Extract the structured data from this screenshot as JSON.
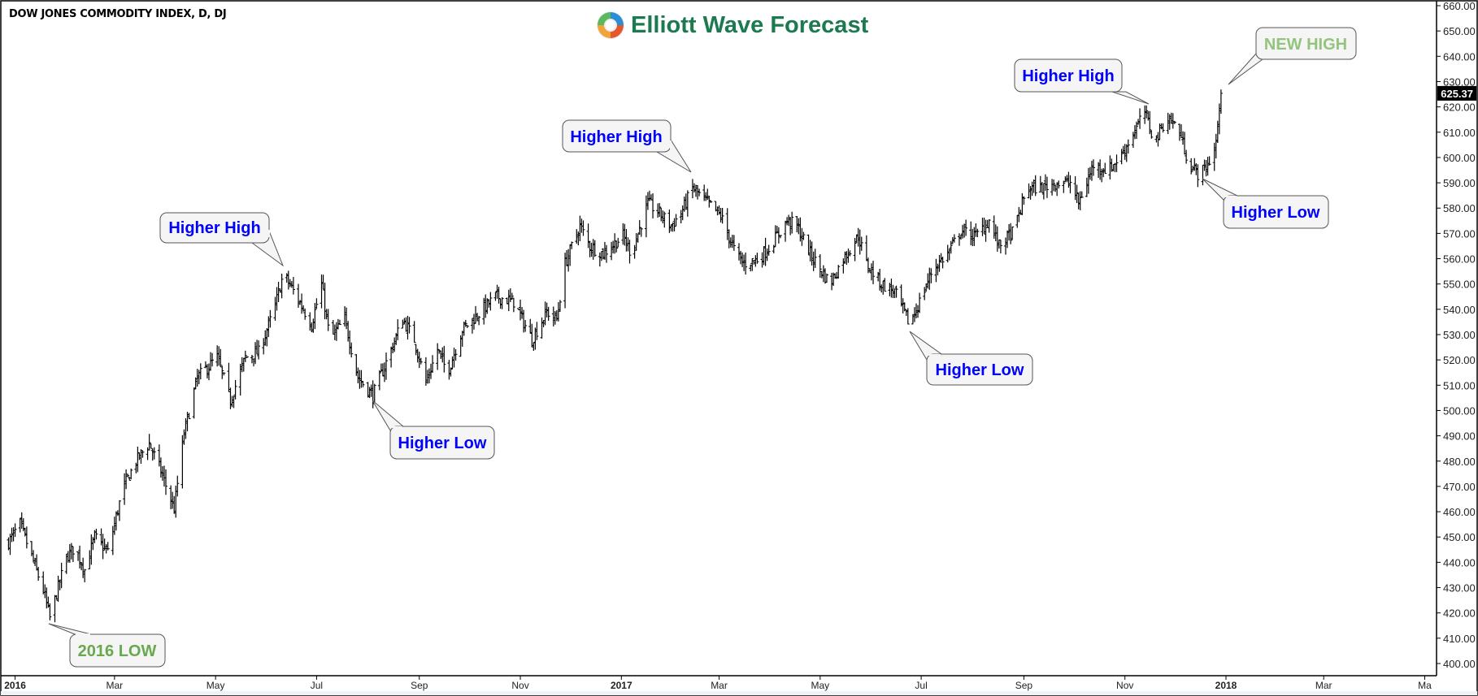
{
  "header": {
    "title": "DOW JONES COMMODITY INDEX, D, DJ",
    "logo_text": "Elliott Wave Forecast"
  },
  "colors": {
    "bars": "#000000",
    "callout_blue": "#0000ff",
    "low_green": "#6aa84f",
    "new_high_green": "#93c47d",
    "logo_green": "#1b7a50",
    "last_price_bg": "#000000"
  },
  "chart_data": {
    "type": "ohlc",
    "title": "DOW JONES COMMODITY INDEX, D, DJ",
    "timeframe": "daily",
    "ylim": [
      400,
      660
    ],
    "y_ticks": [
      "660.00",
      "650.00",
      "640.00",
      "630.00",
      "620.00",
      "610.00",
      "600.00",
      "590.00",
      "580.00",
      "570.00",
      "560.00",
      "550.00",
      "540.00",
      "530.00",
      "520.00",
      "510.00",
      "500.00",
      "490.00",
      "480.00",
      "470.00",
      "460.00",
      "450.00",
      "440.00",
      "430.00",
      "420.00",
      "410.00",
      "400.00"
    ],
    "x_ticks": [
      {
        "label": "2016",
        "date": "2016-01-01",
        "bold": true
      },
      {
        "label": "Mar",
        "date": "2016-03-01"
      },
      {
        "label": "May",
        "date": "2016-05-01"
      },
      {
        "label": "Jul",
        "date": "2016-07-01"
      },
      {
        "label": "Sep",
        "date": "2016-09-01"
      },
      {
        "label": "Nov",
        "date": "2016-11-01"
      },
      {
        "label": "2017",
        "date": "2017-01-01",
        "bold": true
      },
      {
        "label": "Mar",
        "date": "2017-03-01"
      },
      {
        "label": "May",
        "date": "2017-05-01"
      },
      {
        "label": "Jul",
        "date": "2017-07-01"
      },
      {
        "label": "Sep",
        "date": "2017-09-01"
      },
      {
        "label": "Nov",
        "date": "2017-11-01"
      },
      {
        "label": "2018",
        "date": "2018-01-01",
        "bold": true
      },
      {
        "label": "Mar",
        "date": "2018-03-01"
      },
      {
        "label": "Ma",
        "date": "2018-05-01"
      }
    ],
    "last_price": "625.37",
    "closes": [
      [
        "2015-12-28",
        448
      ],
      [
        "2016-01-04",
        455
      ],
      [
        "2016-01-09",
        446
      ],
      [
        "2016-01-18",
        429
      ],
      [
        "2016-01-22",
        418
      ],
      [
        "2016-02-01",
        442
      ],
      [
        "2016-02-06",
        446
      ],
      [
        "2016-02-12",
        437
      ],
      [
        "2016-02-18",
        450
      ],
      [
        "2016-02-26",
        444
      ],
      [
        "2016-03-06",
        469
      ],
      [
        "2016-03-14",
        480
      ],
      [
        "2016-03-22",
        487
      ],
      [
        "2016-03-29",
        476
      ],
      [
        "2016-04-06",
        461
      ],
      [
        "2016-04-12",
        491
      ],
      [
        "2016-04-20",
        513
      ],
      [
        "2016-05-02",
        521
      ],
      [
        "2016-05-10",
        504
      ],
      [
        "2016-05-19",
        521
      ],
      [
        "2016-05-27",
        523
      ],
      [
        "2016-06-05",
        539
      ],
      [
        "2016-06-11",
        554
      ],
      [
        "2016-06-19",
        545
      ],
      [
        "2016-06-28",
        534
      ],
      [
        "2016-07-04",
        550
      ],
      [
        "2016-07-09",
        528
      ],
      [
        "2016-07-18",
        536
      ],
      [
        "2016-07-26",
        513
      ],
      [
        "2016-08-04",
        506
      ],
      [
        "2016-08-12",
        519
      ],
      [
        "2016-08-22",
        536
      ],
      [
        "2016-08-29",
        528
      ],
      [
        "2016-09-05",
        511
      ],
      [
        "2016-09-12",
        524
      ],
      [
        "2016-09-18",
        515
      ],
      [
        "2016-09-27",
        532
      ],
      [
        "2016-10-08",
        539
      ],
      [
        "2016-10-17",
        545
      ],
      [
        "2016-10-28",
        543
      ],
      [
        "2016-11-08",
        528
      ],
      [
        "2016-11-17",
        539
      ],
      [
        "2016-11-23",
        536
      ],
      [
        "2016-11-28",
        558
      ],
      [
        "2016-12-07",
        573
      ],
      [
        "2016-12-13",
        565
      ],
      [
        "2016-12-21",
        562
      ],
      [
        "2017-01-02",
        569
      ],
      [
        "2017-01-07",
        562
      ],
      [
        "2017-01-17",
        582
      ],
      [
        "2017-01-24",
        578
      ],
      [
        "2017-01-31",
        573
      ],
      [
        "2017-02-06",
        578
      ],
      [
        "2017-02-13",
        588
      ],
      [
        "2017-02-22",
        582
      ],
      [
        "2017-03-02",
        577
      ],
      [
        "2017-03-11",
        562
      ],
      [
        "2017-03-16",
        558
      ],
      [
        "2017-03-25",
        560
      ],
      [
        "2017-04-01",
        565
      ],
      [
        "2017-04-11",
        575
      ],
      [
        "2017-04-17",
        573
      ],
      [
        "2017-04-25",
        562
      ],
      [
        "2017-05-07",
        550
      ],
      [
        "2017-05-15",
        560
      ],
      [
        "2017-05-24",
        569
      ],
      [
        "2017-05-29",
        558
      ],
      [
        "2017-06-07",
        550
      ],
      [
        "2017-06-15",
        547
      ],
      [
        "2017-06-24",
        534
      ],
      [
        "2017-06-30",
        543
      ],
      [
        "2017-07-08",
        556
      ],
      [
        "2017-07-17",
        562
      ],
      [
        "2017-07-25",
        571
      ],
      [
        "2017-08-03",
        569
      ],
      [
        "2017-08-11",
        575
      ],
      [
        "2017-08-17",
        565
      ],
      [
        "2017-08-26",
        571
      ],
      [
        "2017-09-03",
        588
      ],
      [
        "2017-09-12",
        588
      ],
      [
        "2017-09-20",
        590
      ],
      [
        "2017-09-29",
        590
      ],
      [
        "2017-10-04",
        582
      ],
      [
        "2017-10-13",
        597
      ],
      [
        "2017-10-22",
        595
      ],
      [
        "2017-10-30",
        601
      ],
      [
        "2017-11-08",
        612
      ],
      [
        "2017-11-13",
        618
      ],
      [
        "2017-11-19",
        606
      ],
      [
        "2017-11-26",
        616
      ],
      [
        "2017-12-03",
        612
      ],
      [
        "2017-12-10",
        597
      ],
      [
        "2017-12-16",
        593
      ],
      [
        "2017-12-21",
        597
      ],
      [
        "2017-12-26",
        606
      ],
      [
        "2017-12-29",
        625.37
      ]
    ],
    "annotations": [
      {
        "text": "2016 LOW",
        "color": "#6aa84f",
        "date": "2016-01-20",
        "price": 418
      },
      {
        "text": "Higher High",
        "color": "#0000ff",
        "date": "2016-06-09",
        "price": 555
      },
      {
        "text": "Higher Low",
        "color": "#0000ff",
        "date": "2016-08-03",
        "price": 504
      },
      {
        "text": "Higher High",
        "color": "#0000ff",
        "date": "2017-02-12",
        "price": 590
      },
      {
        "text": "Higher Low",
        "color": "#0000ff",
        "date": "2017-06-22",
        "price": 531
      },
      {
        "text": "Higher High",
        "color": "#0000ff",
        "date": "2017-11-12",
        "price": 620
      },
      {
        "text": "Higher Low",
        "color": "#0000ff",
        "date": "2017-12-14",
        "price": 591
      },
      {
        "text": "NEW HIGH",
        "color": "#93c47d",
        "date": "2017-12-31",
        "price": 627
      }
    ]
  }
}
